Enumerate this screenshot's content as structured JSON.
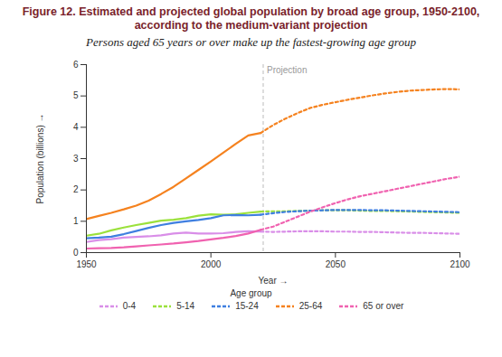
{
  "chart_data": {
    "type": "line",
    "title": "Figure 12. Estimated and projected global population by broad age group, 1950-2100, according to the medium-variant projection",
    "subtitle": "Persons aged 65 years or over make up the fastest-growing age group",
    "x_label": "Year",
    "y_label": "Population (billions)",
    "legend_title": "Age group",
    "x": [
      1950,
      1955,
      1960,
      1965,
      1970,
      1975,
      1980,
      1985,
      1990,
      1995,
      2000,
      2005,
      2010,
      2015,
      2020,
      2025,
      2030,
      2035,
      2040,
      2045,
      2050,
      2055,
      2060,
      2065,
      2070,
      2075,
      2080,
      2085,
      2090,
      2095,
      2100
    ],
    "series": [
      {
        "name": "0-4",
        "color": "#d98ee8",
        "values": [
          0.34,
          0.4,
          0.43,
          0.48,
          0.5,
          0.52,
          0.55,
          0.61,
          0.64,
          0.61,
          0.61,
          0.62,
          0.66,
          0.68,
          0.67,
          0.66,
          0.67,
          0.68,
          0.68,
          0.68,
          0.67,
          0.67,
          0.66,
          0.66,
          0.65,
          0.64,
          0.63,
          0.63,
          0.62,
          0.61,
          0.6
        ]
      },
      {
        "name": "5-14",
        "color": "#9be13c",
        "values": [
          0.54,
          0.6,
          0.71,
          0.8,
          0.88,
          0.95,
          1.02,
          1.05,
          1.1,
          1.18,
          1.22,
          1.21,
          1.22,
          1.27,
          1.31,
          1.32,
          1.32,
          1.33,
          1.34,
          1.35,
          1.35,
          1.35,
          1.34,
          1.33,
          1.33,
          1.32,
          1.31,
          1.3,
          1.29,
          1.28,
          1.27
        ]
      },
      {
        "name": "15-24",
        "color": "#3f7fe0",
        "values": [
          0.46,
          0.48,
          0.51,
          0.59,
          0.69,
          0.79,
          0.88,
          0.95,
          1.0,
          1.04,
          1.1,
          1.19,
          1.2,
          1.19,
          1.21,
          1.26,
          1.3,
          1.32,
          1.34,
          1.35,
          1.36,
          1.36,
          1.36,
          1.35,
          1.35,
          1.34,
          1.33,
          1.32,
          1.31,
          1.3,
          1.29
        ]
      },
      {
        "name": "25-64",
        "color": "#f5821f",
        "values": [
          1.07,
          1.17,
          1.27,
          1.38,
          1.5,
          1.66,
          1.87,
          2.1,
          2.37,
          2.64,
          2.91,
          3.19,
          3.47,
          3.74,
          3.82,
          4.07,
          4.28,
          4.46,
          4.62,
          4.72,
          4.8,
          4.88,
          4.95,
          5.02,
          5.08,
          5.13,
          5.17,
          5.19,
          5.21,
          5.22,
          5.21
        ]
      },
      {
        "name": "65 or over",
        "color": "#f062b0",
        "values": [
          0.13,
          0.14,
          0.15,
          0.17,
          0.2,
          0.23,
          0.26,
          0.29,
          0.33,
          0.37,
          0.42,
          0.47,
          0.53,
          0.61,
          0.73,
          0.83,
          0.99,
          1.15,
          1.31,
          1.45,
          1.58,
          1.7,
          1.8,
          1.88,
          1.96,
          2.04,
          2.12,
          2.2,
          2.28,
          2.36,
          2.42
        ]
      }
    ],
    "annotations": [
      {
        "text": "Projection",
        "x": 2021
      }
    ],
    "xlim": [
      1950,
      2100
    ],
    "xticks": [
      1950,
      2000,
      2050,
      2100
    ],
    "ylim": [
      0,
      6
    ],
    "yticks": [
      0,
      1,
      2,
      3,
      4,
      5,
      6
    ],
    "grid": false
  }
}
